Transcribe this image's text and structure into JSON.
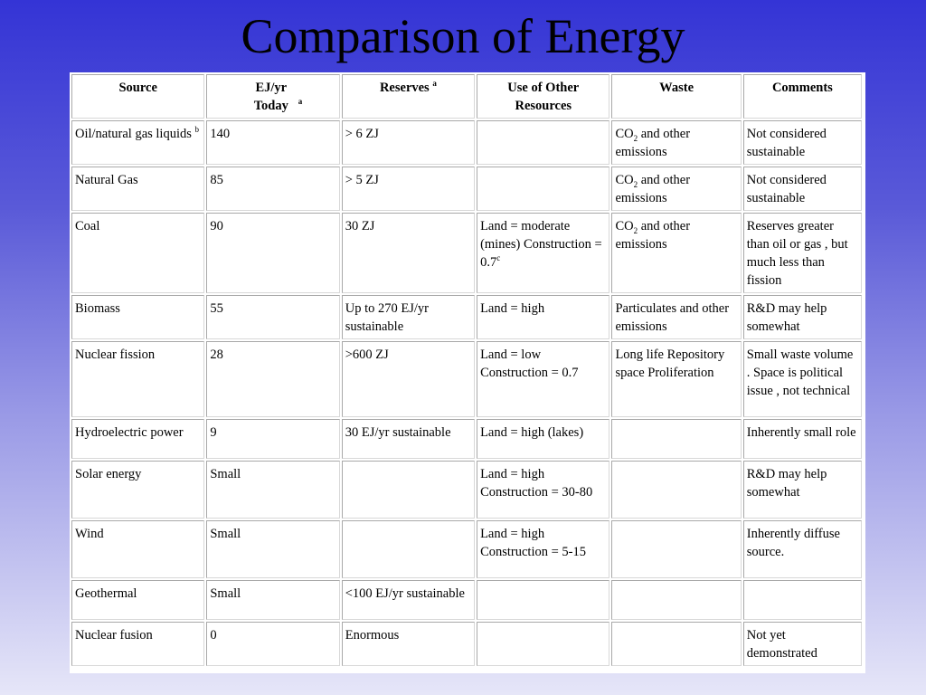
{
  "title": "Comparison of Energy",
  "table": {
    "headers": [
      {
        "text": "Source",
        "sup": ""
      },
      {
        "text": "EJ/yr Today",
        "sup": "a"
      },
      {
        "text": "Reserves",
        "sup": "a"
      },
      {
        "text": "Use of Other Resources",
        "sup": ""
      },
      {
        "text": "Waste",
        "sup": ""
      },
      {
        "text": "Comments",
        "sup": ""
      }
    ],
    "rows": [
      {
        "source": "Oil/natural gas liquids",
        "source_sup": "b",
        "today": "140",
        "reserves": "> 6 ZJ",
        "use": "",
        "use_sup": "",
        "waste_pre": "CO",
        "waste_sub": "2",
        "waste_post": " and other emissions",
        "comments": "Not considered sustainable"
      },
      {
        "source": "Natural Gas",
        "source_sup": "",
        "today": "85",
        "reserves": "> 5 ZJ",
        "use": "",
        "use_sup": "",
        "waste_pre": "CO",
        "waste_sub": "2",
        "waste_post": " and other emissions",
        "comments": "Not considered sustainable"
      },
      {
        "source": "Coal",
        "source_sup": "",
        "today": "90",
        "reserves": "30 ZJ",
        "use": "Land = moderate (mines) Construction = 0.7",
        "use_sup": "c",
        "waste_pre": "CO",
        "waste_sub": "2",
        "waste_post": " and other emissions",
        "comments": "Reserves greater than oil or gas , but much less than fission"
      },
      {
        "source": "Biomass",
        "source_sup": "",
        "today": "55",
        "reserves": "Up to 270 EJ/yr sustainable",
        "use": "Land = high",
        "use_sup": "",
        "waste_pre": "Particulates and other emissions",
        "waste_sub": "",
        "waste_post": "",
        "comments": "R&D may help somewhat"
      },
      {
        "source": "Nuclear fission",
        "source_sup": "",
        "today": "28",
        "reserves": ">600 ZJ",
        "use": "Land = low Construction = 0.7",
        "use_sup": "",
        "waste_pre": "Long life Repository space Proliferation",
        "waste_sub": "",
        "waste_post": "",
        "comments": "Small waste volume . Space is political issue , not technical"
      },
      {
        "source": "Hydroelectric power",
        "source_sup": "",
        "today": "9",
        "reserves": "30 EJ/yr sustainable",
        "use": "Land = high (lakes)",
        "use_sup": "",
        "waste_pre": "",
        "waste_sub": "",
        "waste_post": "",
        "comments": "Inherently small role"
      },
      {
        "source": "Solar energy",
        "source_sup": "",
        "today": "Small",
        "reserves": "",
        "use": "Land = high Construction = 30-80",
        "use_sup": "",
        "waste_pre": "",
        "waste_sub": "",
        "waste_post": "",
        "comments": "R&D may help somewhat"
      },
      {
        "source": "Wind",
        "source_sup": "",
        "today": "Small",
        "reserves": "",
        "use": "Land = high Construction = 5-15",
        "use_sup": "",
        "waste_pre": "",
        "waste_sub": "",
        "waste_post": "",
        "comments": "Inherently diffuse source."
      },
      {
        "source": "Geothermal",
        "source_sup": "",
        "today": "Small",
        "reserves": "<100 EJ/yr sustainable",
        "use": "",
        "use_sup": "",
        "waste_pre": "",
        "waste_sub": "",
        "waste_post": "",
        "comments": ""
      },
      {
        "source": "Nuclear fusion",
        "source_sup": "",
        "today": "0",
        "reserves": "Enormous",
        "use": "",
        "use_sup": "",
        "waste_pre": "",
        "waste_sub": "",
        "waste_post": "",
        "comments": "Not yet demonstrated"
      }
    ]
  }
}
